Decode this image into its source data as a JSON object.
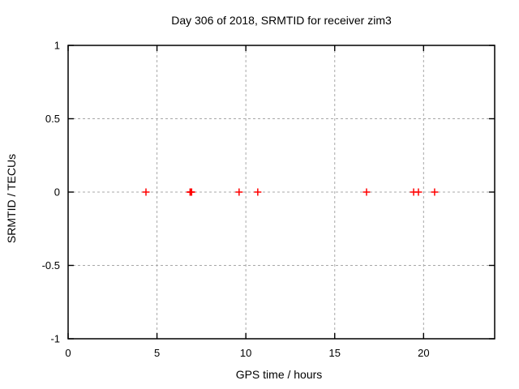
{
  "chart_data": {
    "type": "scatter",
    "title": "Day 306 of 2018, SRMTID for receiver zim3",
    "xlabel": "GPS time / hours",
    "ylabel": "SRMTID / TECUs",
    "xlim": [
      0,
      24
    ],
    "ylim": [
      -1,
      1
    ],
    "xticks": [
      0,
      5,
      10,
      15,
      20
    ],
    "yticks": [
      1,
      0.5,
      0,
      -0.5,
      -1
    ],
    "grid": true,
    "legend": "none",
    "marker": "plus",
    "colors": {
      "marker": "#ff0000",
      "grid": "#a8a8a8",
      "border": "#000000",
      "text": "#000000",
      "background": "#ffffff"
    },
    "series": [
      {
        "name": "SRMTID",
        "x": [
          4.38,
          6.86,
          6.9,
          6.95,
          9.62,
          10.67,
          16.79,
          19.44,
          19.71,
          20.62
        ],
        "y": [
          0,
          0,
          0,
          0,
          0,
          0,
          0,
          0,
          0,
          0
        ]
      }
    ]
  }
}
